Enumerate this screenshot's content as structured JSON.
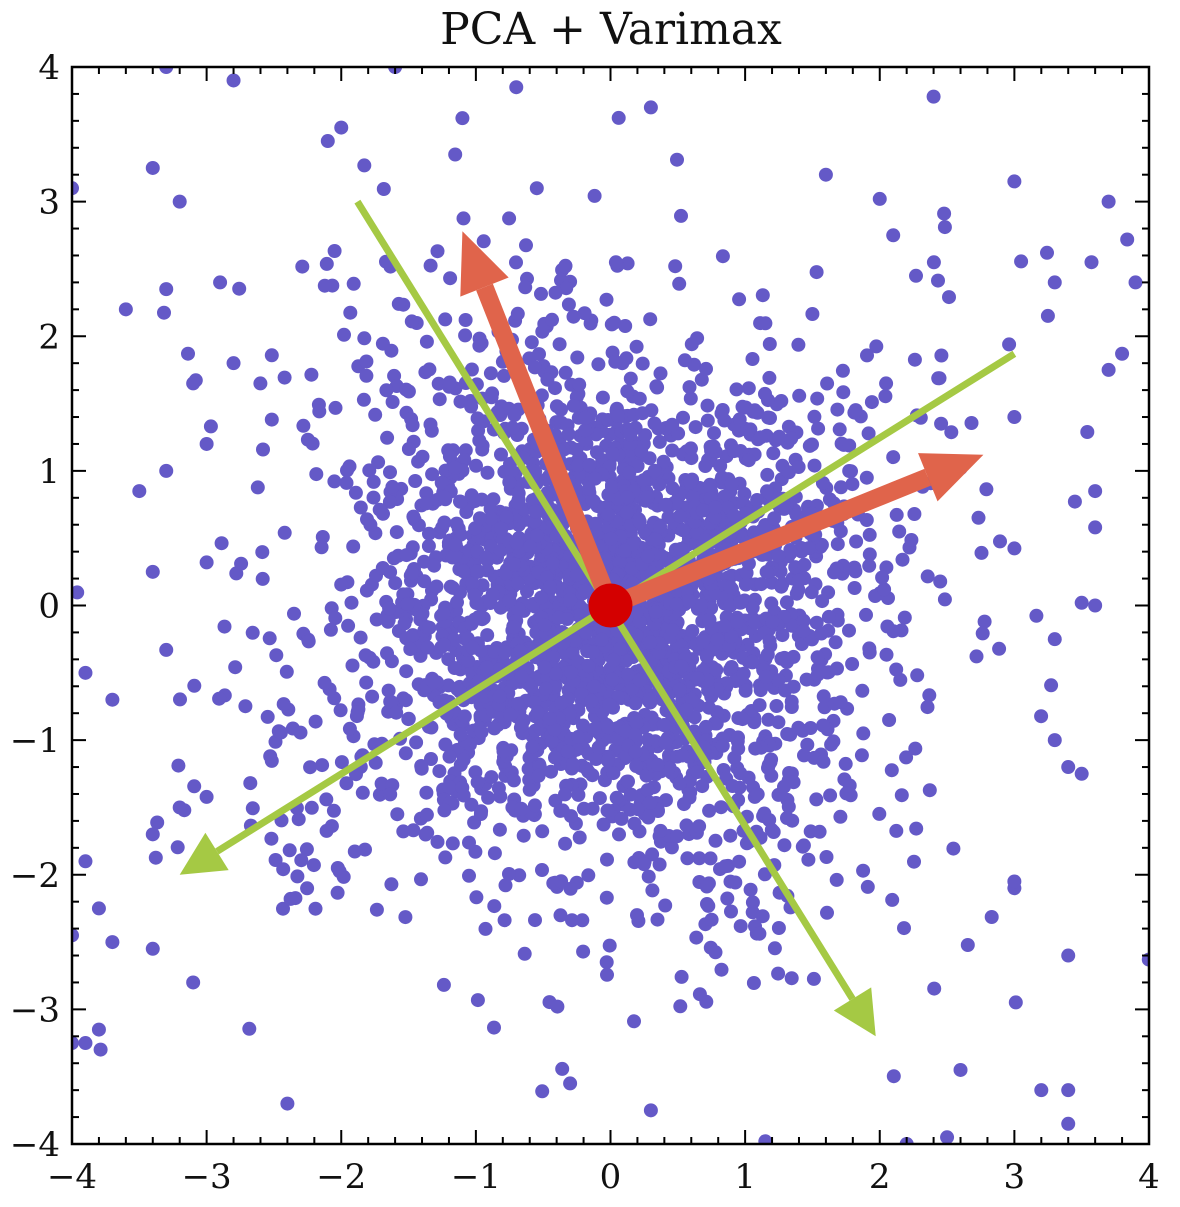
{
  "chart_data": {
    "type": "scatter",
    "title": "PCA + Varimax",
    "xlabel": "",
    "ylabel": "",
    "xlim": [
      -4,
      4
    ],
    "ylim": [
      -4,
      4
    ],
    "x_ticks": [
      -4,
      -3,
      -2,
      -1,
      0,
      1,
      2,
      3,
      4
    ],
    "y_ticks": [
      -4,
      -3,
      -2,
      -1,
      0,
      1,
      2,
      3,
      4
    ],
    "x_tick_labels": [
      "−4",
      "−3",
      "−2",
      "−1",
      "0",
      "1",
      "2",
      "3",
      "4"
    ],
    "y_tick_labels": [
      "−4",
      "−3",
      "−2",
      "−1",
      "0",
      "1",
      "2",
      "3",
      "4"
    ],
    "minor_ticks_per_major": 5,
    "grid": false,
    "legend": null,
    "colors": {
      "points": "#6459c7",
      "pca_axes": "#a5c944",
      "varimax_axes": "#e0644b",
      "origin_marker": "#d40000"
    },
    "scatter": {
      "description": "Dense point cloud centered at origin, heavy-tailed along two oblique directions",
      "approx_count": 3000,
      "center": [
        0,
        0
      ],
      "sample_points": [
        [
          -3.3,
          4.0
        ],
        [
          -2.8,
          3.9
        ],
        [
          -1.6,
          4.0
        ],
        [
          -0.7,
          3.85
        ],
        [
          0.3,
          3.7
        ],
        [
          2.4,
          3.78
        ],
        [
          -2.0,
          3.55
        ],
        [
          -1.1,
          3.62
        ],
        [
          -2.1,
          3.45
        ],
        [
          -3.4,
          3.25
        ],
        [
          -3.2,
          3.0
        ],
        [
          1.6,
          3.2
        ],
        [
          2.0,
          3.02
        ],
        [
          3.0,
          3.15
        ],
        [
          3.7,
          3.0
        ],
        [
          -4.0,
          3.1
        ],
        [
          -3.6,
          2.2
        ],
        [
          -2.9,
          2.4
        ],
        [
          -3.3,
          2.35
        ],
        [
          2.1,
          2.75
        ],
        [
          3.3,
          2.4
        ],
        [
          3.9,
          2.4
        ],
        [
          -3.1,
          1.65
        ],
        [
          -2.8,
          1.8
        ],
        [
          -3.0,
          1.2
        ],
        [
          3.7,
          1.75
        ],
        [
          3.8,
          1.87
        ],
        [
          3.0,
          1.4
        ],
        [
          -3.5,
          0.85
        ],
        [
          -3.3,
          1.0
        ],
        [
          -3.4,
          0.25
        ],
        [
          -3.0,
          0.32
        ],
        [
          3.6,
          0.85
        ],
        [
          3.6,
          0.58
        ],
        [
          -3.9,
          -0.5
        ],
        [
          -3.7,
          -0.7
        ],
        [
          -3.3,
          -0.33
        ],
        [
          3.5,
          0.02
        ],
        [
          3.6,
          0.0
        ],
        [
          3.3,
          -0.25
        ],
        [
          -3.2,
          -1.5
        ],
        [
          -3.4,
          -1.7
        ],
        [
          -3.9,
          -1.9
        ],
        [
          3.3,
          -1.0
        ],
        [
          3.4,
          -1.2
        ],
        [
          3.5,
          -1.25
        ],
        [
          -4.0,
          -2.45
        ],
        [
          -3.8,
          -2.25
        ],
        [
          -3.7,
          -2.5
        ],
        [
          -3.4,
          -2.55
        ],
        [
          -3.1,
          -2.8
        ],
        [
          -4.0,
          -3.25
        ],
        [
          -3.9,
          -3.25
        ],
        [
          -3.8,
          -3.15
        ],
        [
          -2.4,
          -3.7
        ],
        [
          -0.3,
          -3.55
        ],
        [
          0.3,
          -3.75
        ],
        [
          1.15,
          -3.98
        ],
        [
          2.2,
          -4.0
        ],
        [
          2.5,
          -3.95
        ],
        [
          3.4,
          -3.85
        ],
        [
          3.2,
          -3.6
        ],
        [
          3.4,
          -3.6
        ],
        [
          2.6,
          -3.45
        ],
        [
          3.0,
          -2.1
        ],
        [
          3.0,
          -2.05
        ],
        [
          3.4,
          -2.6
        ]
      ]
    },
    "arrows": [
      {
        "name": "pca-component-1",
        "color": "#a5c944",
        "from": [
          -1.88,
          3.0
        ],
        "to": [
          1.97,
          -3.2
        ],
        "head_at": "to"
      },
      {
        "name": "pca-component-2",
        "color": "#a5c944",
        "from": [
          3.0,
          1.87
        ],
        "to": [
          -3.2,
          -2.0
        ],
        "head_at": "to"
      },
      {
        "name": "varimax-component-1",
        "color": "#e0644b",
        "from": [
          0,
          0
        ],
        "to": [
          -1.1,
          2.78
        ],
        "head_at": "to"
      },
      {
        "name": "varimax-component-2",
        "color": "#e0644b",
        "from": [
          0,
          0
        ],
        "to": [
          2.77,
          1.12
        ],
        "head_at": "to"
      }
    ],
    "origin_marker": {
      "x": 0,
      "y": 0,
      "color": "#d40000"
    }
  }
}
